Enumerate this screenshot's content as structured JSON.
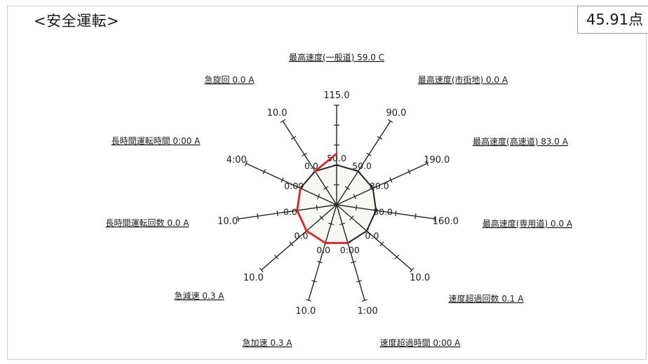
{
  "header": {
    "title": "<安全運転>",
    "score": "45.91点"
  },
  "chart_data": {
    "type": "radar",
    "title": "<安全運転>",
    "score": "45.91点",
    "axes": [
      {
        "label": "最高速度(一般道) 59.0 C",
        "max_label": "115.0",
        "value_label": "50.0",
        "value": 59.0,
        "max": 115.0,
        "grade": "C"
      },
      {
        "label": "最高速度(市街地) 0.0 A",
        "max_label": "90.0",
        "value_label": "50.0",
        "value": 0.0,
        "max": 90.0,
        "grade": "A"
      },
      {
        "label": "最高速度(高速道) 83.0 A",
        "max_label": "190.0",
        "value_label": "80.0",
        "value": 83.0,
        "max": 190.0,
        "grade": "A"
      },
      {
        "label": "最高速度(専用道) 0.0 A",
        "max_label": "160.0",
        "value_label": "80.0",
        "value": 0.0,
        "max": 160.0,
        "grade": "A"
      },
      {
        "label": "速度超過回数 0.1 A",
        "max_label": "10.0",
        "value_label": "0.0",
        "value": 0.1,
        "max": 10.0,
        "grade": "A"
      },
      {
        "label": "速度超過時間 0:00 A",
        "max_label": "1:00",
        "value_label": "0:00",
        "value": 0,
        "max": 60,
        "grade": "A"
      },
      {
        "label": "急加速 0.3 A",
        "max_label": "10.0",
        "value_label": "0.0",
        "value": 0.3,
        "max": 10.0,
        "grade": "A"
      },
      {
        "label": "急減速 0.3 A",
        "max_label": "10.0",
        "value_label": "0.0",
        "value": 0.3,
        "max": 10.0,
        "grade": "A"
      },
      {
        "label": "長時間運転回数 0.0 A",
        "max_label": "10.0",
        "value_label": "0.0",
        "value": 0.0,
        "max": 10.0,
        "grade": "A"
      },
      {
        "label": "長時間運転時間 0:00 A",
        "max_label": "4:00",
        "value_label": "0:00",
        "value": 0,
        "max": 240,
        "grade": "A"
      },
      {
        "label": "急旋回 0.0 A",
        "max_label": "10.0",
        "value_label": "0.0",
        "value": 0.0,
        "max": 10.0,
        "grade": "A"
      }
    ],
    "reference_ring_fraction": 0.4,
    "ticks_per_axis": 5,
    "colors": {
      "axis": "#222222",
      "score_line": "#e02020",
      "reference_line": "#222222",
      "fill": "#f7f8f4"
    }
  }
}
